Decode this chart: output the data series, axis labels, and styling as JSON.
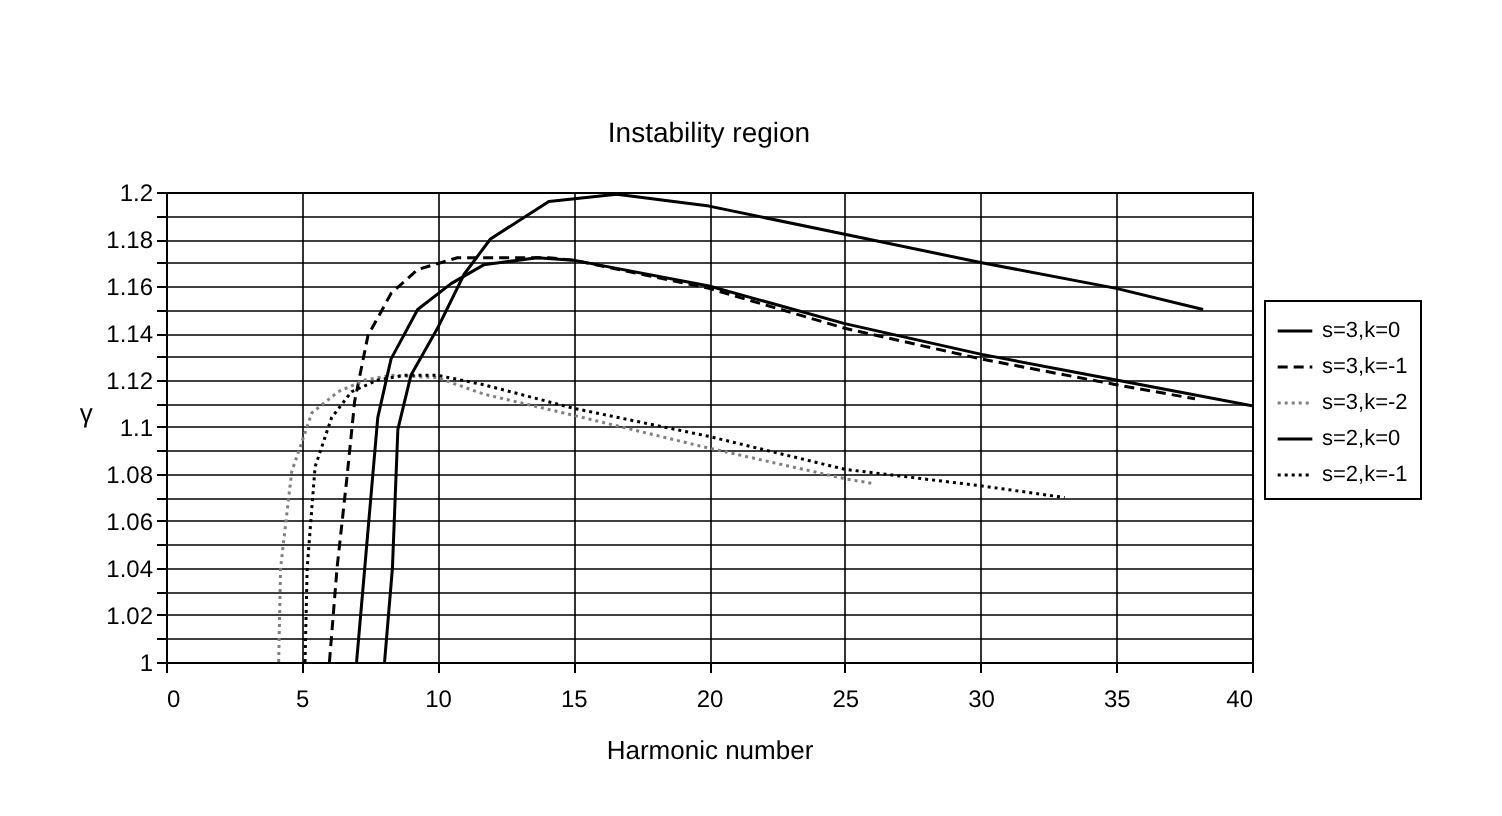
{
  "chart_data": {
    "type": "line",
    "title": "Instability region",
    "xlabel": "Harmonic number",
    "ylabel": "γ",
    "xlim": [
      0,
      40
    ],
    "xticks": [
      0,
      5,
      10,
      15,
      20,
      25,
      30,
      35,
      40
    ],
    "ylim": [
      1,
      1.2
    ],
    "yticks": [
      1,
      {
        "value": 1.01,
        "label": null
      },
      1.02,
      {
        "value": 1.03,
        "label": null
      },
      1.04,
      {
        "value": 1.05,
        "label": null
      },
      1.06,
      {
        "value": 1.07,
        "label": null
      },
      1.08,
      {
        "value": 1.09,
        "label": null
      },
      1.1,
      {
        "value": 1.11,
        "label": null
      },
      1.12,
      {
        "value": 1.13,
        "label": null
      },
      1.14,
      {
        "value": 1.15,
        "label": null
      },
      1.16,
      {
        "value": 1.17,
        "label": null
      },
      1.18,
      {
        "value": 1.19,
        "label": null
      },
      1.2
    ],
    "grid": true,
    "legend": "right",
    "marker": "none",
    "series": [
      {
        "name": "s=3,k=0",
        "color": "#000000",
        "line_style": "solid",
        "x": [
          8.05,
          8.34,
          8.54,
          9.02,
          10,
          10.98,
          11.95,
          14.1,
          16.6,
          20,
          25,
          30,
          35,
          38.2
        ],
        "values": [
          1,
          1.04,
          1.099,
          1.122,
          1.142,
          1.165,
          1.18,
          1.196,
          1.199,
          1.194,
          1.182,
          1.17,
          1.159,
          1.15
        ]
      },
      {
        "name": "s=3,k=-1",
        "color": "#000000",
        "line_style": "dashed",
        "x": [
          6.02,
          6.3,
          6.66,
          6.95,
          7.44,
          8.3,
          9.27,
          10.73,
          14.1,
          15,
          20,
          25,
          30,
          35,
          37.9
        ],
        "values": [
          1,
          1.04,
          1.078,
          1.111,
          1.139,
          1.157,
          1.167,
          1.172,
          1.172,
          1.171,
          1.159,
          1.142,
          1.129,
          1.118,
          1.112
        ]
      },
      {
        "name": "s=3,k=-2",
        "color": "#808080",
        "line_style": "dotted",
        "x": [
          4.15,
          4.22,
          4.63,
          5.37,
          6.34,
          7.32,
          8.3,
          10,
          11.7,
          15,
          20,
          25,
          26
        ],
        "values": [
          1,
          1.04,
          1.081,
          1.106,
          1.115,
          1.12,
          1.122,
          1.121,
          1.114,
          1.105,
          1.091,
          1.078,
          1.076
        ]
      },
      {
        "name": "s=2,k=0",
        "color": "#000000",
        "line_style": "solid",
        "x": [
          7.02,
          7.32,
          7.8,
          8.29,
          9.27,
          10.5,
          11.7,
          13.66,
          15,
          20,
          25,
          30,
          35,
          40
        ],
        "values": [
          1,
          1.04,
          1.104,
          1.129,
          1.15,
          1.161,
          1.169,
          1.172,
          1.171,
          1.16,
          1.144,
          1.131,
          1.12,
          1.109
        ]
      },
      {
        "name": "s=2,k=-1",
        "color": "#000000",
        "line_style": "dotted",
        "x": [
          5.12,
          5.2,
          5.49,
          6.1,
          6.83,
          7.8,
          8.78,
          10,
          11.7,
          15,
          20,
          25,
          30,
          33.1
        ],
        "values": [
          1,
          1.04,
          1.083,
          1.104,
          1.115,
          1.12,
          1.122,
          1.122,
          1.118,
          1.108,
          1.096,
          1.082,
          1.075,
          1.07
        ]
      }
    ]
  }
}
